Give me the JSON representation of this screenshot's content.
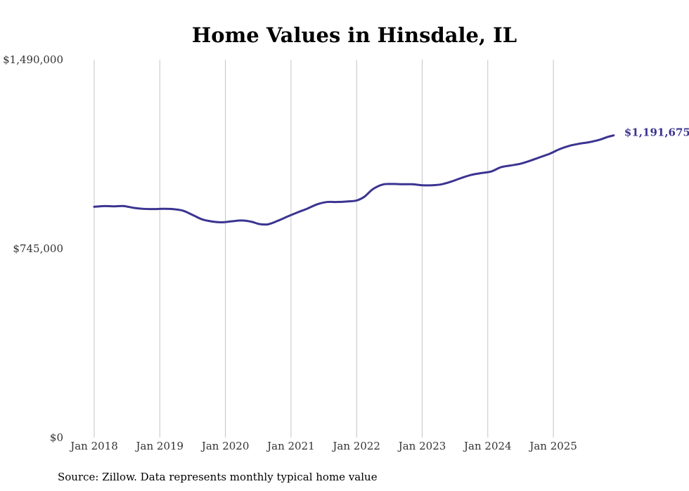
{
  "chart_data": {
    "type": "line",
    "title": "Home Values in Hinsdale, IL",
    "xlabel": "",
    "ylabel": "",
    "ylim": [
      0,
      1490000
    ],
    "y_ticks": [
      {
        "value": 0,
        "label": "$0"
      },
      {
        "value": 745000,
        "label": "$745,000"
      },
      {
        "value": 1490000,
        "label": "$1,490,000"
      }
    ],
    "x_ticks": [
      {
        "x": 2018.0,
        "label": "Jan 2018"
      },
      {
        "x": 2019.0,
        "label": "Jan 2019"
      },
      {
        "x": 2020.0,
        "label": "Jan 2020"
      },
      {
        "x": 2021.0,
        "label": "Jan 2021"
      },
      {
        "x": 2022.0,
        "label": "Jan 2022"
      },
      {
        "x": 2023.0,
        "label": "Jan 2023"
      },
      {
        "x": 2024.0,
        "label": "Jan 2024"
      },
      {
        "x": 2025.0,
        "label": "Jan 2025"
      }
    ],
    "xlim": [
      2018.0,
      2025.95
    ],
    "grid": "vertical",
    "series": [
      {
        "name": "Typical home value",
        "color": "#3b3491",
        "end_label": "$1,191,675",
        "points": [
          [
            2018.0,
            910000
          ],
          [
            2018.15,
            913000
          ],
          [
            2018.3,
            912000
          ],
          [
            2018.45,
            913000
          ],
          [
            2018.6,
            906000
          ],
          [
            2018.75,
            902000
          ],
          [
            2018.9,
            901000
          ],
          [
            2019.05,
            902000
          ],
          [
            2019.2,
            901000
          ],
          [
            2019.35,
            895000
          ],
          [
            2019.5,
            878000
          ],
          [
            2019.65,
            860000
          ],
          [
            2019.8,
            852000
          ],
          [
            2019.95,
            849000
          ],
          [
            2020.1,
            853000
          ],
          [
            2020.25,
            856000
          ],
          [
            2020.4,
            851000
          ],
          [
            2020.52,
            842000
          ],
          [
            2020.65,
            841000
          ],
          [
            2020.8,
            855000
          ],
          [
            2020.95,
            872000
          ],
          [
            2021.1,
            888000
          ],
          [
            2021.25,
            903000
          ],
          [
            2021.4,
            920000
          ],
          [
            2021.55,
            929000
          ],
          [
            2021.7,
            929000
          ],
          [
            2021.85,
            931000
          ],
          [
            2022.0,
            935000
          ],
          [
            2022.12,
            950000
          ],
          [
            2022.25,
            980000
          ],
          [
            2022.4,
            998000
          ],
          [
            2022.55,
            1000000
          ],
          [
            2022.7,
            999000
          ],
          [
            2022.85,
            999000
          ],
          [
            2023.0,
            995000
          ],
          [
            2023.15,
            995000
          ],
          [
            2023.3,
            999000
          ],
          [
            2023.45,
            1010000
          ],
          [
            2023.6,
            1024000
          ],
          [
            2023.75,
            1036000
          ],
          [
            2023.9,
            1043000
          ],
          [
            2024.05,
            1049000
          ],
          [
            2024.2,
            1066000
          ],
          [
            2024.35,
            1073000
          ],
          [
            2024.5,
            1080000
          ],
          [
            2024.65,
            1092000
          ],
          [
            2024.8,
            1106000
          ],
          [
            2024.95,
            1120000
          ],
          [
            2025.1,
            1138000
          ],
          [
            2025.25,
            1151000
          ],
          [
            2025.4,
            1159000
          ],
          [
            2025.55,
            1165000
          ],
          [
            2025.7,
            1174000
          ],
          [
            2025.82,
            1185000
          ],
          [
            2025.92,
            1191675
          ]
        ]
      }
    ],
    "source": "Source: Zillow. Data represents monthly typical home value"
  }
}
